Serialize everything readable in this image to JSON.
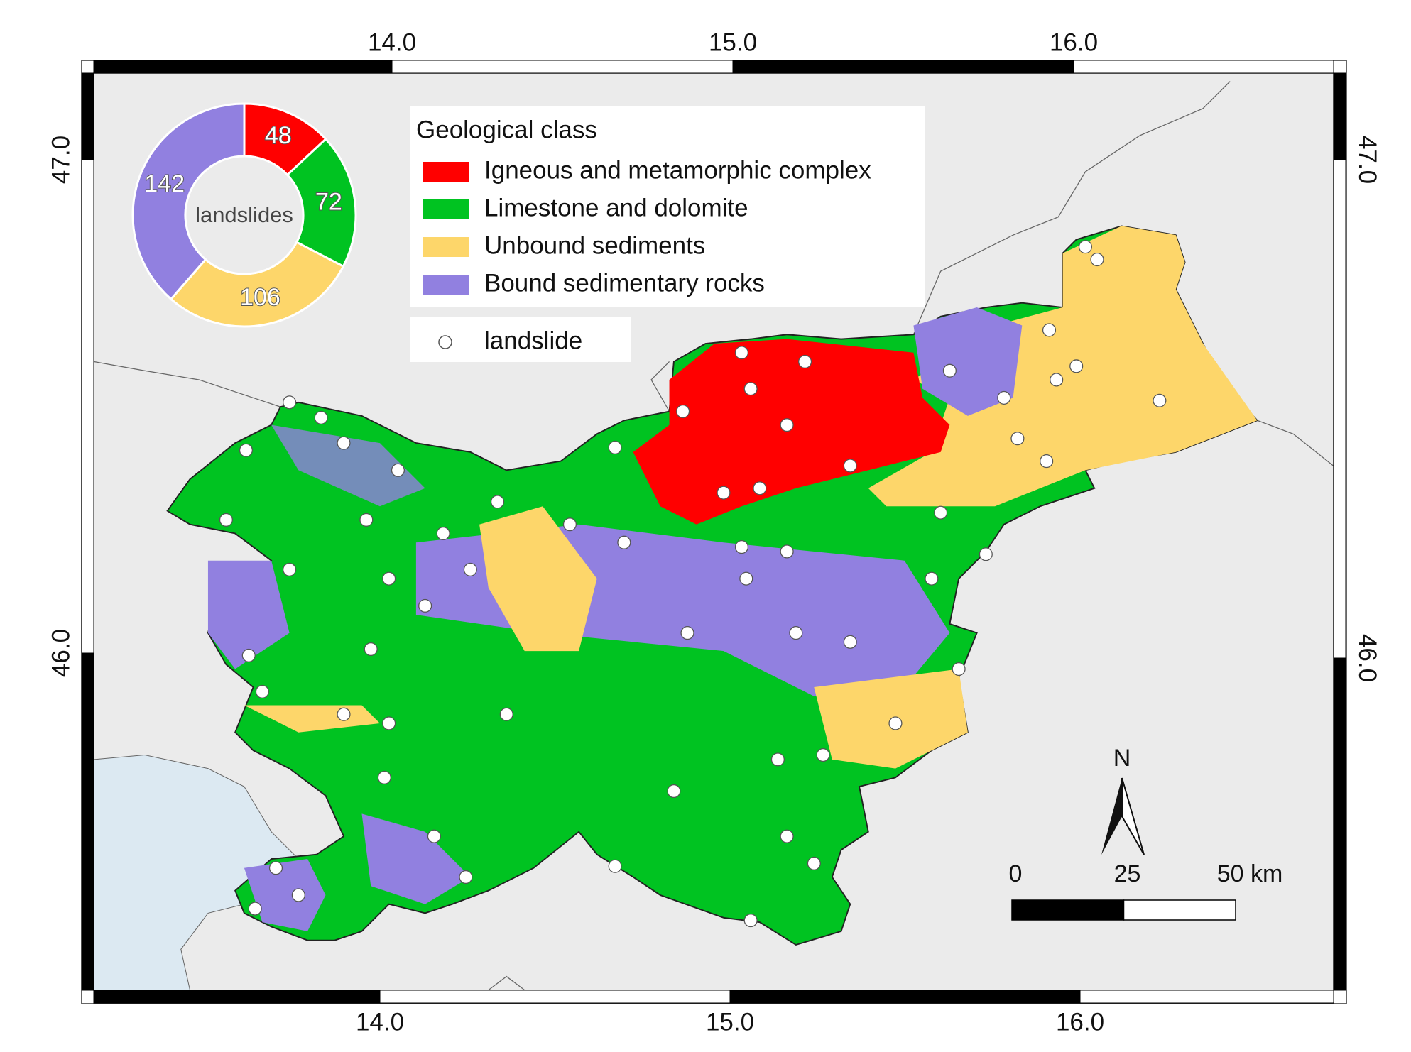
{
  "legend": {
    "title": "Geological class",
    "items": [
      {
        "label": "Igneous and metamorphic complex",
        "color": "#ff0000"
      },
      {
        "label": "Limestone and dolomite",
        "color": "#00c321"
      },
      {
        "label": "Unbound sediments",
        "color": "#fdd66a"
      },
      {
        "label": "Bound sedimentary rocks",
        "color": "#9180e0"
      }
    ]
  },
  "point_legend": {
    "label": "landslide"
  },
  "donut": {
    "center_label": "landslides",
    "values": [
      48,
      72,
      106,
      142
    ],
    "colors": [
      "#ff0000",
      "#00c321",
      "#fdd66a",
      "#9180e0"
    ]
  },
  "lon_ticks_top": [
    {
      "value": 14,
      "label": "14.0"
    },
    {
      "value": 15,
      "label": "15.0"
    },
    {
      "value": 16,
      "label": "16.0"
    }
  ],
  "lon_ticks_bottom": [
    {
      "value": 14,
      "label": "14.0"
    },
    {
      "value": 15,
      "label": "15.0"
    },
    {
      "value": 16,
      "label": "16.0"
    }
  ],
  "lat_ticks_left": [
    {
      "value": 47,
      "label": "47.0"
    },
    {
      "value": 46,
      "label": "46.0"
    }
  ],
  "lat_ticks_right": [
    {
      "value": 47,
      "label": "47.0"
    },
    {
      "value": 46,
      "label": "46.0"
    }
  ],
  "scale_bar": {
    "ticks": [
      0,
      25,
      {
        "value": 50,
        "label": "50 km"
      }
    ]
  },
  "north_label": "N"
}
